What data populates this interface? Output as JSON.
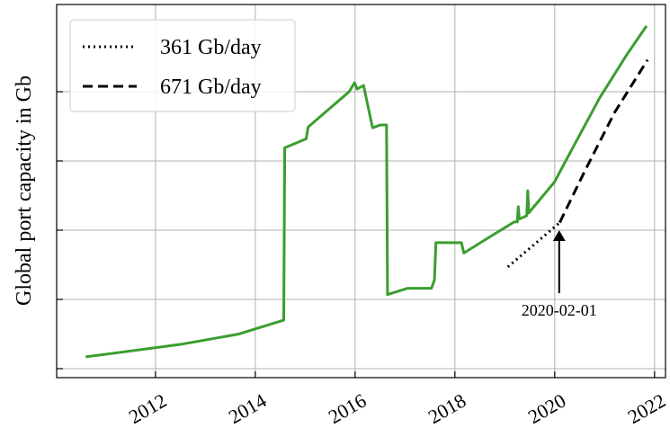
{
  "chart_data": {
    "type": "line",
    "y_label": "Global port capacity in Gb",
    "xlim": [
      2010.02,
      2022.22
    ],
    "ylim": [
      -0.13,
      5.26
    ],
    "xticks": [
      2012,
      2014,
      2016,
      2018,
      2020,
      2022
    ],
    "yticks": [
      0,
      1,
      2,
      3,
      4
    ],
    "grid": true,
    "legend": "upper left",
    "series": [
      {
        "color": "#3a9e2f",
        "style": "solid",
        "x": [
          2010.6,
          2012.5,
          2013.67,
          2014.57,
          2014.59,
          2015.02,
          2015.06,
          2015.88,
          2015.99,
          2016.04,
          2016.17,
          2016.35,
          2016.51,
          2016.63,
          2016.65,
          2017.05,
          2017.53,
          2017.59,
          2017.62,
          2018.13,
          2018.18,
          2018.76,
          2019.19,
          2019.25,
          2019.27,
          2019.29,
          2019.44,
          2019.46,
          2019.48,
          2020.0,
          2020.22,
          2020.9,
          2021.44,
          2021.84
        ],
        "values": [
          0.17,
          0.35,
          0.5,
          0.7,
          3.19,
          3.32,
          3.49,
          4.0,
          4.13,
          4.04,
          4.09,
          3.48,
          3.52,
          3.52,
          1.07,
          1.16,
          1.16,
          1.28,
          1.82,
          1.82,
          1.67,
          1.93,
          2.12,
          2.12,
          2.34,
          2.16,
          2.21,
          2.57,
          2.25,
          2.7,
          3.0,
          3.91,
          4.53,
          4.95
        ]
      },
      {
        "name": "361 Gb/day",
        "color": "#000000",
        "style": "dotted",
        "x": [
          2019.06,
          2019.6,
          2020.1
        ],
        "values": [
          1.47,
          1.8,
          2.11
        ]
      },
      {
        "name": "671 Gb/day",
        "color": "#000000",
        "style": "dashed",
        "x": [
          2020.1,
          2020.6,
          2021.2,
          2021.86
        ],
        "values": [
          2.11,
          2.85,
          3.7,
          4.46
        ]
      }
    ],
    "annotation": {
      "text": "2020-02-01",
      "x": 2020.09,
      "y": 2.0
    }
  }
}
